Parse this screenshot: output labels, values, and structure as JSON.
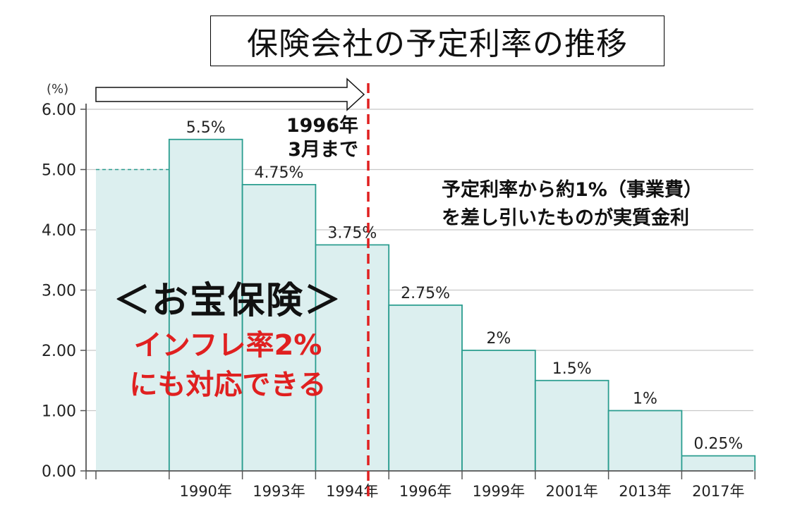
{
  "title": "保険会社の予定利率の推移",
  "chart_data": {
    "type": "bar",
    "title": "保険会社の予定利率の推移",
    "unit": "(%)",
    "categories": [
      "",
      "1990年",
      "1993年",
      "1994年",
      "1996年",
      "1999年",
      "2001年",
      "2013年",
      "2017年"
    ],
    "values": [
      5.0,
      5.5,
      4.75,
      3.75,
      2.75,
      2.0,
      1.5,
      1.0,
      0.25
    ],
    "data_labels": [
      "",
      "5.5%",
      "4.75%",
      "3.75%",
      "2.75%",
      "2%",
      "1.5%",
      "1%",
      "0.25%"
    ],
    "yticks": [
      "0.00",
      "1.00",
      "2.00",
      "3.00",
      "4.00",
      "5.00",
      "6.00"
    ],
    "ylim": [
      0,
      6
    ],
    "grid": true,
    "bar_color": "#dcefef",
    "bar_edge_color": "#2a9d8f",
    "marker_line_color": "#e02020"
  },
  "annotations": {
    "cutoff": "1996年\n3月まで",
    "cutoff_line1": "1996年",
    "cutoff_line2": "3月まで",
    "real_rate_line1": "予定利率から約1%（事業費）",
    "real_rate_line2": "を差し引いたものが実質金利",
    "otakara": "＜お宝保険＞",
    "inflation_line1": "インフレ率2%",
    "inflation_line2": "にも対応できる"
  }
}
